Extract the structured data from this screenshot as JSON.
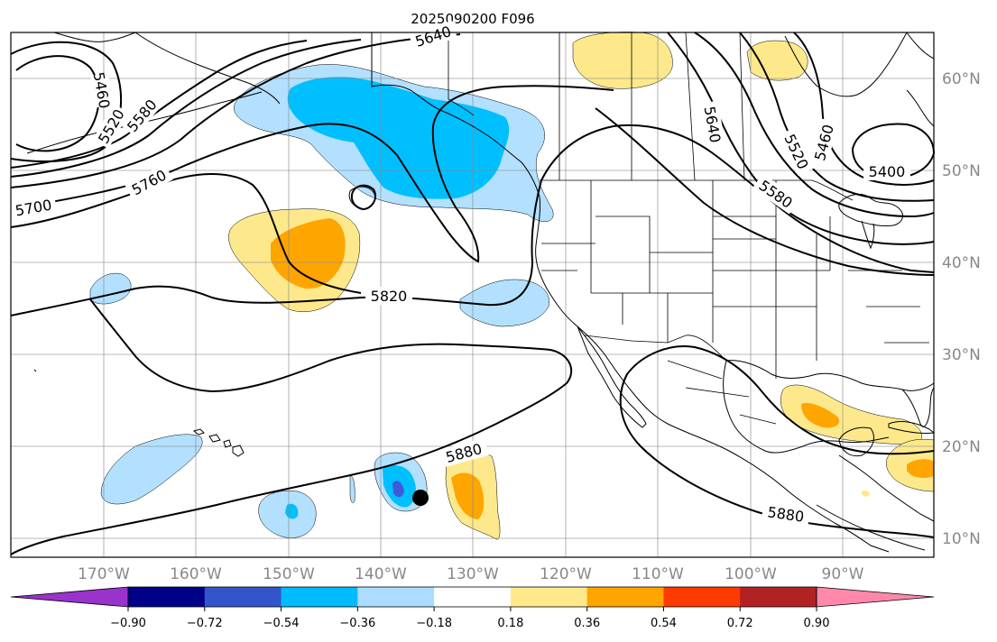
{
  "title": "2025090200 F096",
  "map": {
    "lat_labels": [
      "60°N",
      "50°N",
      "40°N",
      "30°N",
      "20°N",
      "10°N"
    ],
    "lon_labels": [
      "170°W",
      "160°W",
      "150°W",
      "140°W",
      "130°W",
      "120°W",
      "110°W",
      "100°W",
      "90°W"
    ],
    "contour_labels": [
      "5640",
      "5460",
      "5520",
      "5580",
      "5760",
      "5700",
      "5820",
      "5880",
      "5880",
      "5640",
      "5520",
      "5460",
      "5580",
      "5400"
    ],
    "marker": "black-dot"
  },
  "colorbar": {
    "ticks": [
      "−0.90",
      "−0.72",
      "−0.54",
      "−0.36",
      "−0.18",
      "0.18",
      "0.36",
      "0.54",
      "0.72",
      "0.90"
    ],
    "colors": [
      "#9933cc",
      "#000088",
      "#3355cc",
      "#00bbff",
      "#aaddff",
      "#ffffff",
      "#ffe98a",
      "#ffa500",
      "#ff3a00",
      "#b22222",
      "#ff88aa"
    ]
  },
  "colors": {
    "very_light_blue": "#b3e0ff",
    "light_blue": "#00bfff",
    "mid_blue": "#3d5bd9",
    "light_yellow": "#fde98b",
    "orange": "#ffa500"
  }
}
